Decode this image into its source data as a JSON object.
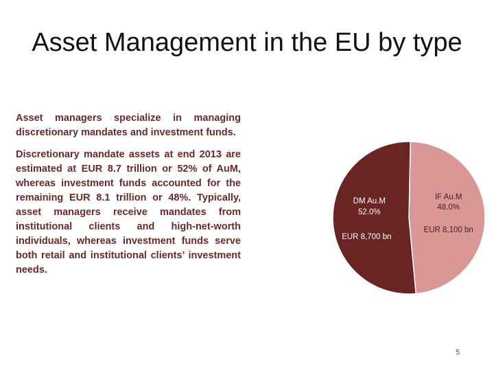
{
  "slide": {
    "title": "Asset Management in the EU by type",
    "page_number": "5"
  },
  "text": {
    "paragraph1": "Asset managers specialize in managing discretionary mandates and investment funds.",
    "paragraph2": "Discretionary mandate assets at end 2013 are estimated at EUR 8.7 trillion or 52% of AuM, whereas investment funds accounted for the remaining EUR 8.1 trillion or 48%. Typically, asset managers receive mandates from institutional clients and high-net-worth individuals, whereas investment funds serve both retail and institutional clients’ investment needs."
  },
  "colors": {
    "text_accent": "#6b2a2a",
    "dm_slice": "#6a2424",
    "if_slice": "#d99796"
  },
  "chart_data": {
    "type": "pie",
    "title": "",
    "slices": [
      {
        "name": "IF Au.M",
        "percent_label": "48.0%",
        "amount_label": "EUR 8,100 bn",
        "value": 8100,
        "color": "#d99796",
        "label_color": "#4a1d1d"
      },
      {
        "name": "DM Au.M",
        "percent_label": "52.0%",
        "amount_label": "EUR 8,700 bn",
        "value": 8700,
        "color": "#6a2424",
        "label_color": "#ffffff"
      }
    ],
    "start": "12 o'clock",
    "direction": "clockwise",
    "legend": "none"
  }
}
